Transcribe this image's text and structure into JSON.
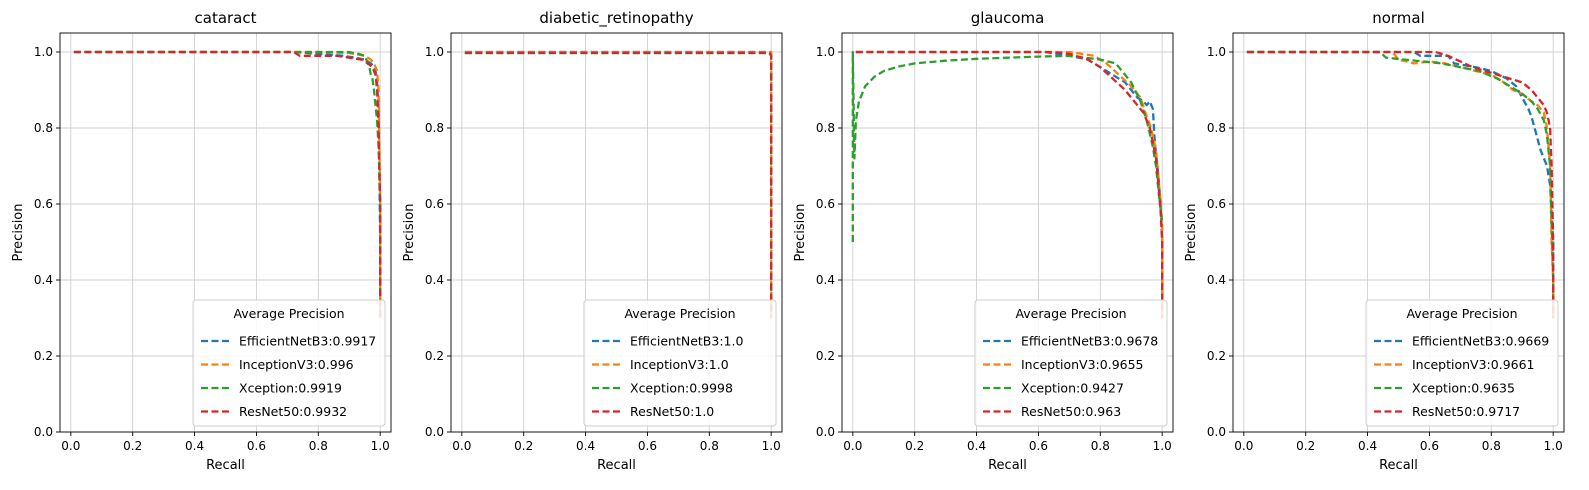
{
  "chart_data": [
    {
      "type": "line",
      "title": "cataract",
      "xlabel": "Recall",
      "ylabel": "Precision",
      "xlim": [
        -0.035,
        1.035
      ],
      "ylim": [
        0.0,
        1.05
      ],
      "xticks": [
        "0.0",
        "0.2",
        "0.4",
        "0.6",
        "0.8",
        "1.0"
      ],
      "yticks": [
        "0.0",
        "0.2",
        "0.4",
        "0.6",
        "0.8",
        "1.0"
      ],
      "grid": true,
      "legend": {
        "title": "Average Precision",
        "placement": "lower right"
      },
      "series": [
        {
          "name": "EfficientNetB3:0.9917",
          "color": "#1f77b4",
          "x": [
            0.01,
            0.72,
            0.8,
            0.88,
            0.92,
            0.95,
            0.97,
            0.98,
            0.985,
            0.99,
            0.995,
            1.0,
            1.0
          ],
          "y": [
            1.0,
            1.0,
            0.995,
            0.99,
            0.985,
            0.98,
            0.97,
            0.96,
            0.95,
            0.92,
            0.85,
            0.5,
            0.3
          ]
        },
        {
          "name": "InceptionV3:0.996",
          "color": "#ff7f0e",
          "x": [
            0.01,
            0.8,
            0.9,
            0.95,
            0.97,
            0.98,
            0.99,
            0.995,
            1.0,
            1.0
          ],
          "y": [
            1.0,
            1.0,
            0.997,
            0.99,
            0.98,
            0.97,
            0.95,
            0.9,
            0.6,
            0.3
          ]
        },
        {
          "name": "Xception:0.9919",
          "color": "#2ca02c",
          "x": [
            0.01,
            0.84,
            0.9,
            0.93,
            0.95,
            0.96,
            0.965,
            0.97,
            0.975,
            0.98,
            0.985,
            0.99,
            0.995,
            1.0,
            1.0
          ],
          "y": [
            1.0,
            1.0,
            1.0,
            0.995,
            0.99,
            0.97,
            0.96,
            0.94,
            0.93,
            0.9,
            0.86,
            0.82,
            0.75,
            0.6,
            0.3
          ]
        },
        {
          "name": "ResNet50:0.9932",
          "color": "#d62728",
          "x": [
            0.01,
            0.72,
            0.74,
            0.86,
            0.9,
            0.94,
            0.96,
            0.975,
            0.985,
            0.99,
            0.995,
            1.0,
            1.0
          ],
          "y": [
            1.0,
            1.0,
            0.99,
            0.99,
            0.985,
            0.98,
            0.97,
            0.96,
            0.94,
            0.9,
            0.8,
            0.6,
            0.3
          ]
        }
      ]
    },
    {
      "type": "line",
      "title": "diabetic_retinopathy",
      "xlabel": "Recall",
      "ylabel": "Precision",
      "xlim": [
        -0.035,
        1.035
      ],
      "ylim": [
        0.0,
        1.05
      ],
      "xticks": [
        "0.0",
        "0.2",
        "0.4",
        "0.6",
        "0.8",
        "1.0"
      ],
      "yticks": [
        "0.0",
        "0.2",
        "0.4",
        "0.6",
        "0.8",
        "1.0"
      ],
      "grid": true,
      "legend": {
        "title": "Average Precision",
        "placement": "lower right"
      },
      "series": [
        {
          "name": "EfficientNetB3:1.0",
          "color": "#1f77b4",
          "x": [
            0.01,
            1.0,
            1.0
          ],
          "y": [
            1.0,
            1.0,
            0.3
          ]
        },
        {
          "name": "InceptionV3:1.0",
          "color": "#ff7f0e",
          "x": [
            0.01,
            1.0,
            1.0
          ],
          "y": [
            1.0,
            1.0,
            0.3
          ]
        },
        {
          "name": "Xception:0.9998",
          "color": "#2ca02c",
          "x": [
            0.01,
            0.99,
            0.995,
            1.0,
            1.0
          ],
          "y": [
            0.997,
            0.997,
            0.995,
            0.99,
            0.3
          ]
        },
        {
          "name": "ResNet50:1.0",
          "color": "#d62728",
          "x": [
            0.01,
            0.995,
            1.0,
            1.0
          ],
          "y": [
            0.998,
            0.998,
            0.99,
            0.3
          ]
        }
      ]
    },
    {
      "type": "line",
      "title": "glaucoma",
      "xlabel": "Recall",
      "ylabel": "Precision",
      "xlim": [
        -0.035,
        1.035
      ],
      "ylim": [
        0.0,
        1.05
      ],
      "xticks": [
        "0.0",
        "0.2",
        "0.4",
        "0.6",
        "0.8",
        "1.0"
      ],
      "yticks": [
        "0.0",
        "0.2",
        "0.4",
        "0.6",
        "0.8",
        "1.0"
      ],
      "grid": true,
      "legend": {
        "title": "Average Precision",
        "placement": "lower right"
      },
      "series": [
        {
          "name": "EfficientNetB3:0.9678",
          "color": "#1f77b4",
          "x": [
            0.01,
            0.62,
            0.7,
            0.76,
            0.8,
            0.84,
            0.88,
            0.9,
            0.92,
            0.94,
            0.95,
            0.96,
            0.97,
            0.975,
            0.98,
            0.985,
            0.99,
            0.995,
            1.0,
            1.0
          ],
          "y": [
            1.0,
            1.0,
            0.99,
            0.98,
            0.96,
            0.94,
            0.92,
            0.9,
            0.88,
            0.87,
            0.86,
            0.87,
            0.85,
            0.78,
            0.73,
            0.7,
            0.65,
            0.6,
            0.5,
            0.3
          ]
        },
        {
          "name": "InceptionV3:0.9655",
          "color": "#ff7f0e",
          "x": [
            0.01,
            0.7,
            0.74,
            0.78,
            0.82,
            0.86,
            0.9,
            0.93,
            0.95,
            0.96,
            0.97,
            0.98,
            0.985,
            0.99,
            0.995,
            1.0,
            1.0
          ],
          "y": [
            1.0,
            1.0,
            0.995,
            0.99,
            0.97,
            0.94,
            0.91,
            0.88,
            0.83,
            0.81,
            0.78,
            0.74,
            0.7,
            0.65,
            0.6,
            0.55,
            0.3
          ]
        },
        {
          "name": "Xception:0.9427",
          "color": "#2ca02c",
          "x": [
            0.0,
            0.0,
            0.005,
            0.01,
            0.02,
            0.04,
            0.07,
            0.1,
            0.15,
            0.2,
            0.3,
            0.4,
            0.5,
            0.6,
            0.7,
            0.8,
            0.85,
            0.9,
            0.93,
            0.95,
            0.97,
            0.98,
            0.99,
            1.0
          ],
          "y": [
            0.5,
            1.0,
            0.72,
            0.82,
            0.87,
            0.91,
            0.935,
            0.95,
            0.962,
            0.97,
            0.977,
            0.982,
            0.985,
            0.988,
            0.99,
            0.98,
            0.97,
            0.92,
            0.87,
            0.82,
            0.75,
            0.7,
            0.62,
            0.55
          ]
        },
        {
          "name": "ResNet50:0.963",
          "color": "#d62728",
          "x": [
            0.01,
            0.64,
            0.7,
            0.76,
            0.8,
            0.84,
            0.88,
            0.9,
            0.92,
            0.94,
            0.95,
            0.96,
            0.97,
            0.98,
            0.985,
            0.99,
            0.995,
            1.0,
            1.0
          ],
          "y": [
            1.0,
            1.0,
            0.995,
            0.98,
            0.96,
            0.93,
            0.9,
            0.88,
            0.86,
            0.84,
            0.82,
            0.8,
            0.76,
            0.72,
            0.68,
            0.63,
            0.58,
            0.5,
            0.3
          ]
        }
      ]
    },
    {
      "type": "line",
      "title": "normal",
      "xlabel": "Recall",
      "ylabel": "Precision",
      "xlim": [
        -0.035,
        1.035
      ],
      "ylim": [
        0.0,
        1.05
      ],
      "xticks": [
        "0.0",
        "0.2",
        "0.4",
        "0.6",
        "0.8",
        "1.0"
      ],
      "yticks": [
        "0.0",
        "0.2",
        "0.4",
        "0.6",
        "0.8",
        "1.0"
      ],
      "grid": true,
      "legend": {
        "title": "Average Precision",
        "placement": "lower right"
      },
      "series": [
        {
          "name": "EfficientNetB3:0.9669",
          "color": "#1f77b4",
          "x": [
            0.01,
            0.55,
            0.57,
            0.66,
            0.68,
            0.75,
            0.8,
            0.85,
            0.88,
            0.9,
            0.92,
            0.93,
            0.94,
            0.95,
            0.96,
            0.97,
            0.98,
            0.99,
            1.0,
            1.0
          ],
          "y": [
            1.0,
            1.0,
            0.99,
            0.99,
            0.97,
            0.96,
            0.95,
            0.93,
            0.91,
            0.88,
            0.85,
            0.83,
            0.8,
            0.77,
            0.74,
            0.72,
            0.7,
            0.65,
            0.5,
            0.3
          ]
        },
        {
          "name": "InceptionV3:0.9661",
          "color": "#ff7f0e",
          "x": [
            0.01,
            0.48,
            0.5,
            0.55,
            0.6,
            0.65,
            0.7,
            0.75,
            0.8,
            0.84,
            0.87,
            0.9,
            0.93,
            0.95,
            0.97,
            0.98,
            0.99,
            0.995,
            1.0,
            1.0
          ],
          "y": [
            1.0,
            1.0,
            0.98,
            0.97,
            0.975,
            0.97,
            0.96,
            0.95,
            0.94,
            0.92,
            0.9,
            0.89,
            0.87,
            0.86,
            0.84,
            0.8,
            0.7,
            0.5,
            0.4,
            0.3
          ]
        },
        {
          "name": "Xception:0.9635",
          "color": "#2ca02c",
          "x": [
            0.01,
            0.44,
            0.46,
            0.52,
            0.58,
            0.64,
            0.7,
            0.76,
            0.82,
            0.86,
            0.9,
            0.93,
            0.95,
            0.97,
            0.98,
            0.99,
            0.995,
            1.0,
            1.0
          ],
          "y": [
            1.0,
            1.0,
            0.985,
            0.98,
            0.975,
            0.97,
            0.96,
            0.95,
            0.93,
            0.91,
            0.89,
            0.87,
            0.85,
            0.82,
            0.78,
            0.7,
            0.55,
            0.4,
            0.3
          ]
        },
        {
          "name": "ResNet50:0.9717",
          "color": "#d62728",
          "x": [
            0.01,
            0.62,
            0.66,
            0.7,
            0.74,
            0.78,
            0.82,
            0.86,
            0.9,
            0.93,
            0.95,
            0.97,
            0.98,
            0.99,
            0.995,
            1.0,
            1.0
          ],
          "y": [
            1.0,
            1.0,
            0.99,
            0.975,
            0.96,
            0.95,
            0.94,
            0.93,
            0.92,
            0.9,
            0.88,
            0.86,
            0.84,
            0.8,
            0.7,
            0.5,
            0.3
          ]
        }
      ]
    }
  ]
}
